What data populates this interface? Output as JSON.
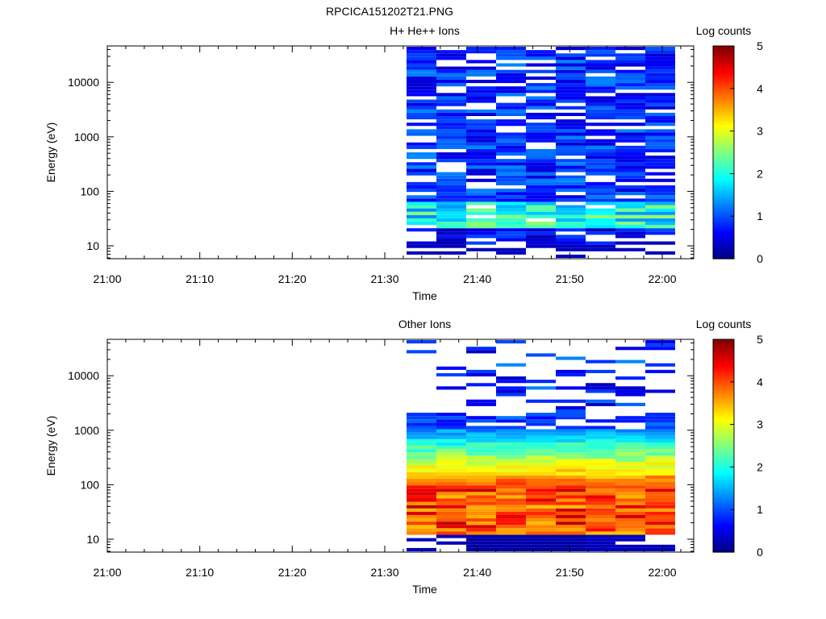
{
  "figure_title": "RPCICA151202T21.PNG",
  "chart_data": [
    {
      "type": "heatmap",
      "title": "H+ He++ Ions",
      "xlabel": "Time",
      "ylabel": "Energy (eV)",
      "x_ticks": [
        "21:00",
        "21:10",
        "21:20",
        "21:30",
        "21:40",
        "21:50",
        "22:00"
      ],
      "y_ticks": [
        "10",
        "100",
        "1000",
        "10000"
      ],
      "y_scale": "log",
      "colorbar": {
        "label": "Log counts",
        "ticks": [
          "0",
          "1",
          "2",
          "3",
          "4",
          "5"
        ],
        "range": [
          0,
          5
        ],
        "colormap": "jet"
      },
      "time_bins": [
        "21:32–21:35",
        "21:35–21:38",
        "21:38–21:41",
        "21:41–21:45",
        "21:45–21:48",
        "21:48–21:51",
        "21:51–21:55",
        "21:55–21:58",
        "21:58–22:01"
      ],
      "energy_range_eV": [
        6,
        45000
      ],
      "gaps_near_eV": [
        60,
        40,
        25
      ],
      "summary": "Mostly 0.5–1 log counts at all energies above 100 eV; 1.5–2.5 log counts between 20 and 60 eV; white (no counts) gaps scattered"
    },
    {
      "type": "heatmap",
      "title": "Other Ions",
      "xlabel": "Time",
      "ylabel": "Energy (eV)",
      "x_ticks": [
        "21:00",
        "21:10",
        "21:20",
        "21:30",
        "21:40",
        "21:50",
        "22:00"
      ],
      "y_ticks": [
        "10",
        "100",
        "1000",
        "10000"
      ],
      "y_scale": "log",
      "colorbar": {
        "label": "Log counts",
        "ticks": [
          "0",
          "1",
          "2",
          "3",
          "4",
          "5"
        ],
        "range": [
          0,
          5
        ],
        "colormap": "jet"
      },
      "time_bins": [
        "21:32–21:35",
        "21:35–21:38",
        "21:38–21:41",
        "21:41–21:45",
        "21:45–21:48",
        "21:48–21:51",
        "21:51–21:55",
        "21:55–21:58",
        "21:58–22:01"
      ],
      "peak_energy_eV": 40,
      "peak_log_counts": 4.5,
      "summary": "Counts peak at about 4.5 log counts near 30–60 eV, decaying to about 1 log count near 1000 eV; sparse low counts between 1500 and 30000 eV"
    }
  ]
}
